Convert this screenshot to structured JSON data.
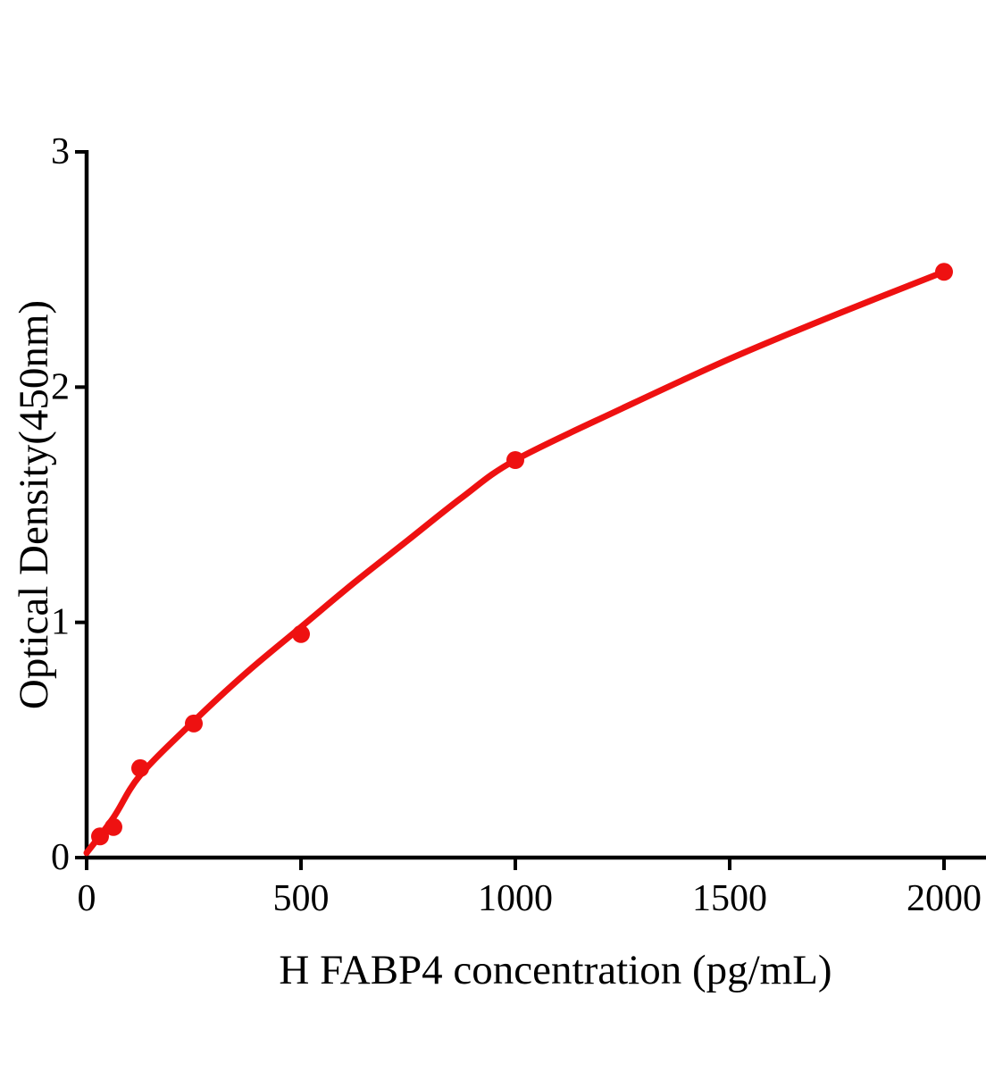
{
  "chart_data": {
    "type": "scatter",
    "title": "",
    "xlabel": "H FABP4 concentration (pg/mL)",
    "ylabel": "Optical Density(450nm)",
    "xlim": [
      0,
      2100
    ],
    "ylim": [
      0,
      3
    ],
    "grid": false,
    "legend": "none",
    "colors": {
      "series": "#ee1111",
      "axis": "#000000",
      "background": "#ffffff"
    },
    "x_ticks": [
      {
        "value": 0,
        "label": "0"
      },
      {
        "value": 500,
        "label": "500"
      },
      {
        "value": 1000,
        "label": "1000"
      },
      {
        "value": 1500,
        "label": "1500"
      },
      {
        "value": 2000,
        "label": "2000"
      }
    ],
    "y_ticks": [
      {
        "value": 0,
        "label": "0"
      },
      {
        "value": 1,
        "label": "1"
      },
      {
        "value": 2,
        "label": "2"
      },
      {
        "value": 3,
        "label": "3"
      }
    ],
    "series": [
      {
        "name": "standard-points",
        "type": "scatter",
        "marker": "circle",
        "points": [
          {
            "x": 31.25,
            "y": 0.09
          },
          {
            "x": 62.5,
            "y": 0.13
          },
          {
            "x": 125,
            "y": 0.38
          },
          {
            "x": 250,
            "y": 0.57
          },
          {
            "x": 500,
            "y": 0.95
          },
          {
            "x": 1000,
            "y": 1.69
          },
          {
            "x": 2000,
            "y": 2.49
          }
        ]
      },
      {
        "name": "fitted-curve",
        "type": "line",
        "points": [
          {
            "x": 0,
            "y": 0.02
          },
          {
            "x": 62.5,
            "y": 0.17
          },
          {
            "x": 125,
            "y": 0.35
          },
          {
            "x": 250,
            "y": 0.58
          },
          {
            "x": 375,
            "y": 0.79
          },
          {
            "x": 500,
            "y": 0.98
          },
          {
            "x": 625,
            "y": 1.17
          },
          {
            "x": 750,
            "y": 1.35
          },
          {
            "x": 875,
            "y": 1.53
          },
          {
            "x": 1000,
            "y": 1.69
          },
          {
            "x": 1250,
            "y": 1.91
          },
          {
            "x": 1500,
            "y": 2.12
          },
          {
            "x": 1750,
            "y": 2.31
          },
          {
            "x": 2000,
            "y": 2.49
          }
        ]
      }
    ]
  }
}
